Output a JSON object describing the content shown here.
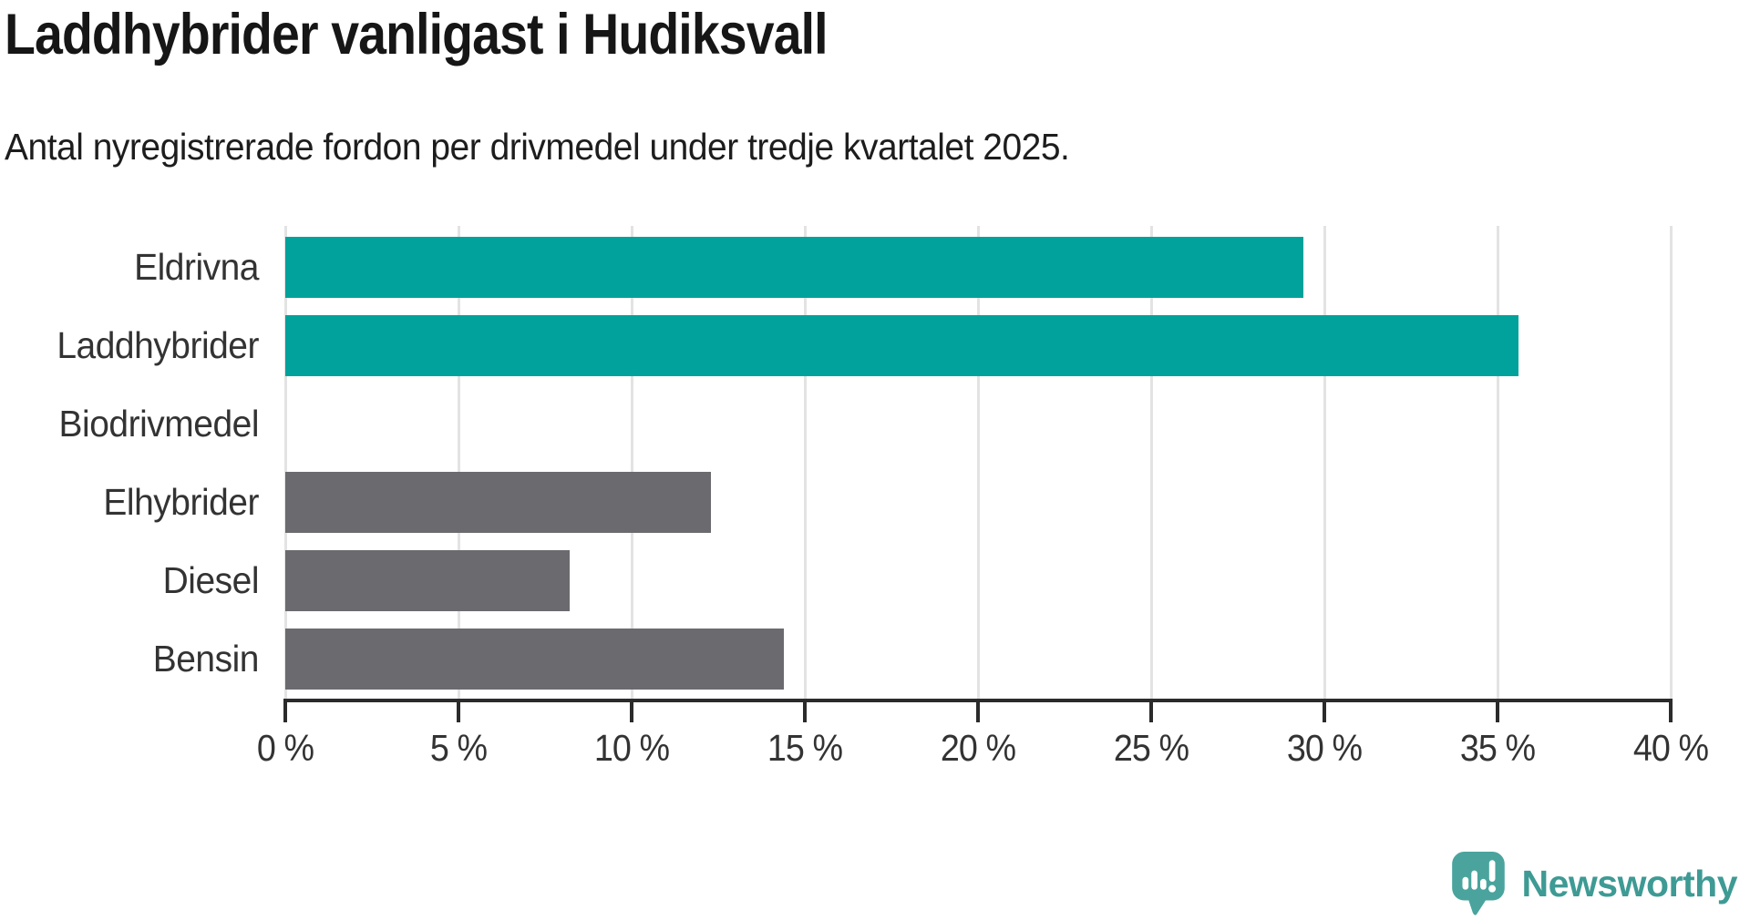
{
  "header": {
    "title": "Laddhybrider vanligast i Hudiksvall",
    "subtitle": "Antal nyregistrerade fordon per drivmedel under tredje kvartalet 2025."
  },
  "chart_data": {
    "type": "bar",
    "orientation": "horizontal",
    "title": "Laddhybrider vanligast i Hudiksvall",
    "subtitle": "Antal nyregistrerade fordon per drivmedel under tredje kvartalet 2025.",
    "categories": [
      "Eldrivna",
      "Laddhybrider",
      "Biodrivmedel",
      "Elhybrider",
      "Diesel",
      "Bensin"
    ],
    "values": [
      29.4,
      35.6,
      0,
      12.3,
      8.2,
      14.4
    ],
    "unit": "%",
    "xlim": [
      0,
      40
    ],
    "xticks": [
      0,
      5,
      10,
      15,
      20,
      25,
      30,
      35,
      40
    ],
    "xtick_labels": [
      "0 %",
      "5 %",
      "10 %",
      "15 %",
      "20 %",
      "25 %",
      "30 %",
      "35 %",
      "40 %"
    ],
    "bar_colors": [
      "#00a29b",
      "#00a29b",
      "#6a6a6f",
      "#6a6a6f",
      "#6a6a6f",
      "#6a6a6f"
    ],
    "highlight_color": "#00a29b",
    "default_color": "#6a6a6f",
    "gridline_color": "#e3e3e3",
    "axis_color": "#2b2b2b",
    "grid": true,
    "legend_position": "none",
    "ylabel": "",
    "xlabel": ""
  },
  "footer": {
    "brand": "Newsworthy",
    "brand_text_color": "#3e9a94",
    "icon_color": "#4aa49d",
    "icon": "newsworthy-logo-icon"
  }
}
